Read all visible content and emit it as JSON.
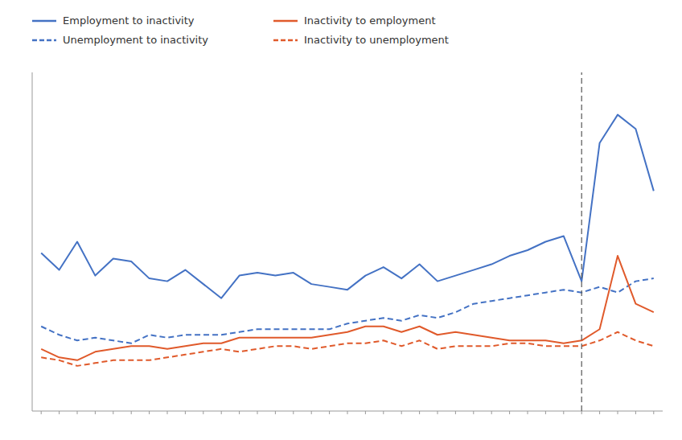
{
  "chart_data": {
    "type": "line",
    "categories": [
      null,
      null,
      null,
      null,
      null,
      null,
      null,
      null,
      null,
      null,
      null,
      null,
      null,
      null,
      null,
      null,
      null,
      null,
      null,
      null,
      null,
      null,
      null,
      null,
      null,
      null,
      null,
      null,
      null,
      null,
      null,
      null,
      null,
      null,
      null
    ],
    "series": [
      {
        "name": "Employment to inactivity",
        "color": "#4472c4",
        "line_style": "solid",
        "values": [
          56,
          50,
          60,
          48,
          54,
          53,
          47,
          46,
          50,
          45,
          40,
          48,
          49,
          48,
          49,
          45,
          44,
          43,
          48,
          51,
          47,
          52,
          46,
          48,
          50,
          52,
          55,
          57,
          60,
          62,
          46,
          95,
          105,
          100,
          78
        ]
      },
      {
        "name": "Unemployment to inactivity",
        "color": "#4472c4",
        "line_style": "dashed",
        "values": [
          30,
          27,
          25,
          26,
          25,
          24,
          27,
          26,
          27,
          27,
          27,
          28,
          29,
          29,
          29,
          29,
          29,
          31,
          32,
          33,
          32,
          34,
          33,
          35,
          38,
          39,
          40,
          41,
          42,
          43,
          42,
          44,
          42,
          46,
          47
        ]
      },
      {
        "name": "Inactivity to employment",
        "color": "#e05a2b",
        "line_style": "solid",
        "values": [
          22,
          19,
          18,
          21,
          22,
          23,
          23,
          22,
          23,
          24,
          24,
          26,
          26,
          26,
          26,
          26,
          27,
          28,
          30,
          30,
          28,
          30,
          27,
          28,
          27,
          26,
          25,
          25,
          25,
          24,
          25,
          29,
          55,
          38,
          35
        ]
      },
      {
        "name": "Inactivity to unemployment",
        "color": "#e05a2b",
        "line_style": "dashed",
        "values": [
          19,
          18,
          16,
          17,
          18,
          18,
          18,
          19,
          20,
          21,
          22,
          21,
          22,
          23,
          23,
          22,
          23,
          24,
          24,
          25,
          23,
          25,
          22,
          23,
          23,
          23,
          24,
          24,
          23,
          23,
          23,
          25,
          28,
          25,
          23
        ]
      }
    ],
    "vlines": [
      {
        "value": 30,
        "color": "#555555",
        "line_style": "dashed"
      }
    ],
    "ylim": [
      0,
      120
    ],
    "yticks": [],
    "grid": false,
    "legend": "top",
    "tick_labels": false
  }
}
